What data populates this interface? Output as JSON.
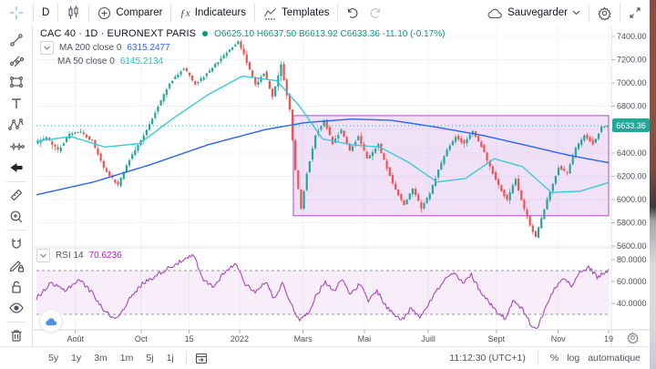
{
  "topbar": {
    "interval_label": "D",
    "compare_label": "Comparer",
    "indicators_fx": "ƒx",
    "indicators_label": "Indicateurs",
    "templates_label": "Templates",
    "save_label": "Sauvegarder"
  },
  "legend": {
    "symbol_title": "CAC 40 · 1D · EURONEXT PARIS",
    "ohlc_text": "O6625.10  H6637.50  B6613.92  C6633.36  -11.10 (-0.17%)",
    "ma200": {
      "name": "MA 200 close 0",
      "value": "6315.2477"
    },
    "ma50": {
      "name": "MA 50 close 0",
      "value": "6145.2134"
    }
  },
  "rsi_header": {
    "name": "RSI 14",
    "value": "70.6236"
  },
  "price_tag": {
    "value": "6633.36"
  },
  "bottom_bar": {
    "ranges": [
      "5y",
      "1y",
      "3m",
      "1m",
      "5j",
      "1j"
    ],
    "time": "11:12:30 (UTC+1)",
    "percent_label": "%",
    "log_label": "log",
    "auto_label": "automatique"
  },
  "chart_data": {
    "type": "candlestick",
    "title": "CAC 40 1D EURONEXT PARIS",
    "legend_position": "top-left",
    "grid": true,
    "last": {
      "open": 6625.1,
      "high": 6637.5,
      "low": 6613.92,
      "close": 6633.36,
      "change": -11.1,
      "change_pct": -0.17
    },
    "indicators": [
      {
        "name": "MA 200",
        "value": 6315.2477,
        "color": "#2962ff"
      },
      {
        "name": "MA 50",
        "value": 6145.2134,
        "color": "#3bc9db"
      },
      {
        "name": "RSI 14",
        "value": 70.6236,
        "color": "#ab47bc",
        "levels": [
          70,
          30
        ]
      }
    ],
    "price_axis": {
      "min": 5600,
      "max": 7400,
      "ticks": [
        {
          "v": 7400,
          "label": "7400.00"
        },
        {
          "v": 7200,
          "label": "7200.00"
        },
        {
          "v": 7000,
          "label": "7000.00"
        },
        {
          "v": 6800,
          "label": "6800.00"
        },
        {
          "v": 6600,
          "label": "6600.00"
        },
        {
          "v": 6400,
          "label": "6400.00"
        },
        {
          "v": 6200,
          "label": "6200.00"
        },
        {
          "v": 6000,
          "label": "6000.00"
        },
        {
          "v": 5800,
          "label": "5800.00"
        },
        {
          "v": 5600,
          "label": "5600.00"
        }
      ]
    },
    "rsi_axis": {
      "ticks": [
        {
          "v": 80,
          "label": "80.0000"
        },
        {
          "v": 60,
          "label": "60.0000"
        },
        {
          "v": 40,
          "label": "40.0000"
        }
      ]
    },
    "time_axis": {
      "labels": [
        {
          "t": 0.068,
          "label": "Août"
        },
        {
          "t": 0.183,
          "label": "Oct"
        },
        {
          "t": 0.267,
          "label": "15"
        },
        {
          "t": 0.355,
          "label": "2022"
        },
        {
          "t": 0.466,
          "label": "Mars"
        },
        {
          "t": 0.573,
          "label": "Mai"
        },
        {
          "t": 0.685,
          "label": "Juill"
        },
        {
          "t": 0.804,
          "label": "Sept"
        },
        {
          "t": 0.912,
          "label": "Nov"
        },
        {
          "t": 1.0,
          "label": "19"
        }
      ]
    },
    "series": {
      "price_anchors": [
        [
          0,
          6480
        ],
        [
          0.02,
          6530
        ],
        [
          0.04,
          6420
        ],
        [
          0.06,
          6560
        ],
        [
          0.08,
          6580
        ],
        [
          0.1,
          6500
        ],
        [
          0.12,
          6270
        ],
        [
          0.145,
          6120
        ],
        [
          0.16,
          6300
        ],
        [
          0.19,
          6550
        ],
        [
          0.21,
          6750
        ],
        [
          0.235,
          7000
        ],
        [
          0.26,
          7130
        ],
        [
          0.28,
          6990
        ],
        [
          0.3,
          7080
        ],
        [
          0.33,
          7240
        ],
        [
          0.355,
          7360
        ],
        [
          0.37,
          7180
        ],
        [
          0.385,
          6980
        ],
        [
          0.4,
          7090
        ],
        [
          0.415,
          6880
        ],
        [
          0.43,
          7160
        ],
        [
          0.445,
          6770
        ],
        [
          0.455,
          6250
        ],
        [
          0.465,
          5920
        ],
        [
          0.475,
          6230
        ],
        [
          0.49,
          6550
        ],
        [
          0.505,
          6680
        ],
        [
          0.52,
          6480
        ],
        [
          0.535,
          6600
        ],
        [
          0.55,
          6420
        ],
        [
          0.565,
          6540
        ],
        [
          0.58,
          6350
        ],
        [
          0.6,
          6470
        ],
        [
          0.615,
          6270
        ],
        [
          0.63,
          6080
        ],
        [
          0.645,
          5950
        ],
        [
          0.66,
          6090
        ],
        [
          0.675,
          5930
        ],
        [
          0.69,
          6050
        ],
        [
          0.705,
          6250
        ],
        [
          0.72,
          6420
        ],
        [
          0.735,
          6540
        ],
        [
          0.75,
          6480
        ],
        [
          0.765,
          6590
        ],
        [
          0.78,
          6460
        ],
        [
          0.795,
          6280
        ],
        [
          0.81,
          6120
        ],
        [
          0.825,
          5990
        ],
        [
          0.84,
          6180
        ],
        [
          0.85,
          5990
        ],
        [
          0.865,
          5780
        ],
        [
          0.875,
          5680
        ],
        [
          0.885,
          5840
        ],
        [
          0.9,
          6070
        ],
        [
          0.915,
          6280
        ],
        [
          0.93,
          6220
        ],
        [
          0.945,
          6440
        ],
        [
          0.96,
          6550
        ],
        [
          0.975,
          6480
        ],
        [
          0.99,
          6620
        ],
        [
          1,
          6633.36
        ]
      ],
      "ma200_anchors": [
        [
          0,
          6040
        ],
        [
          0.1,
          6150
        ],
        [
          0.2,
          6300
        ],
        [
          0.3,
          6470
        ],
        [
          0.4,
          6600
        ],
        [
          0.47,
          6660
        ],
        [
          0.55,
          6690
        ],
        [
          0.62,
          6680
        ],
        [
          0.7,
          6620
        ],
        [
          0.78,
          6550
        ],
        [
          0.86,
          6460
        ],
        [
          0.93,
          6380
        ],
        [
          1,
          6315.2477
        ]
      ],
      "ma50_anchors": [
        [
          0,
          6500
        ],
        [
          0.06,
          6540
        ],
        [
          0.12,
          6450
        ],
        [
          0.18,
          6480
        ],
        [
          0.24,
          6700
        ],
        [
          0.3,
          6900
        ],
        [
          0.36,
          7060
        ],
        [
          0.42,
          7020
        ],
        [
          0.46,
          6800
        ],
        [
          0.5,
          6520
        ],
        [
          0.55,
          6470
        ],
        [
          0.6,
          6450
        ],
        [
          0.65,
          6320
        ],
        [
          0.7,
          6150
        ],
        [
          0.75,
          6180
        ],
        [
          0.8,
          6350
        ],
        [
          0.85,
          6280
        ],
        [
          0.9,
          6060
        ],
        [
          0.95,
          6070
        ],
        [
          1,
          6145.2134
        ]
      ],
      "rsi_anchors": [
        [
          0,
          45
        ],
        [
          0.025,
          58
        ],
        [
          0.05,
          52
        ],
        [
          0.075,
          62
        ],
        [
          0.1,
          48
        ],
        [
          0.12,
          32
        ],
        [
          0.14,
          26
        ],
        [
          0.16,
          42
        ],
        [
          0.185,
          58
        ],
        [
          0.21,
          66
        ],
        [
          0.235,
          74
        ],
        [
          0.26,
          80
        ],
        [
          0.275,
          84
        ],
        [
          0.29,
          62
        ],
        [
          0.31,
          55
        ],
        [
          0.33,
          70
        ],
        [
          0.35,
          76
        ],
        [
          0.365,
          58
        ],
        [
          0.38,
          50
        ],
        [
          0.4,
          60
        ],
        [
          0.415,
          45
        ],
        [
          0.43,
          58
        ],
        [
          0.445,
          40
        ],
        [
          0.46,
          24
        ],
        [
          0.475,
          32
        ],
        [
          0.49,
          48
        ],
        [
          0.505,
          60
        ],
        [
          0.52,
          52
        ],
        [
          0.535,
          62
        ],
        [
          0.55,
          48
        ],
        [
          0.565,
          58
        ],
        [
          0.58,
          42
        ],
        [
          0.595,
          52
        ],
        [
          0.61,
          38
        ],
        [
          0.625,
          30
        ],
        [
          0.64,
          25
        ],
        [
          0.655,
          36
        ],
        [
          0.67,
          28
        ],
        [
          0.685,
          40
        ],
        [
          0.7,
          52
        ],
        [
          0.715,
          62
        ],
        [
          0.73,
          68
        ],
        [
          0.745,
          58
        ],
        [
          0.76,
          66
        ],
        [
          0.775,
          52
        ],
        [
          0.79,
          42
        ],
        [
          0.805,
          32
        ],
        [
          0.82,
          26
        ],
        [
          0.835,
          44
        ],
        [
          0.85,
          34
        ],
        [
          0.865,
          20
        ],
        [
          0.875,
          17
        ],
        [
          0.89,
          36
        ],
        [
          0.905,
          54
        ],
        [
          0.92,
          64
        ],
        [
          0.935,
          56
        ],
        [
          0.95,
          68
        ],
        [
          0.965,
          73
        ],
        [
          0.98,
          64
        ],
        [
          1,
          70.62
        ]
      ]
    },
    "annotations": {
      "box": {
        "t1": 0.449,
        "t2": 1.0,
        "p_top": 6720,
        "p_bottom": 5860
      },
      "current_price_line": 6633.36
    },
    "colors": {
      "up": "#26a69a",
      "down": "#ef5350",
      "ohlc_text": "#089981",
      "ma200": "#2962ff",
      "ma50": "#3bc9db",
      "rsi": "#ab47bc",
      "rsi_band": "rgba(171,71,188,0.09)",
      "box_fill": "rgba(187,107,217,0.20)",
      "box_stroke": "#ab4fc0",
      "grid": "#f0f3fa",
      "axis_text": "#4a4e57",
      "separator": "#e0e3eb"
    }
  }
}
